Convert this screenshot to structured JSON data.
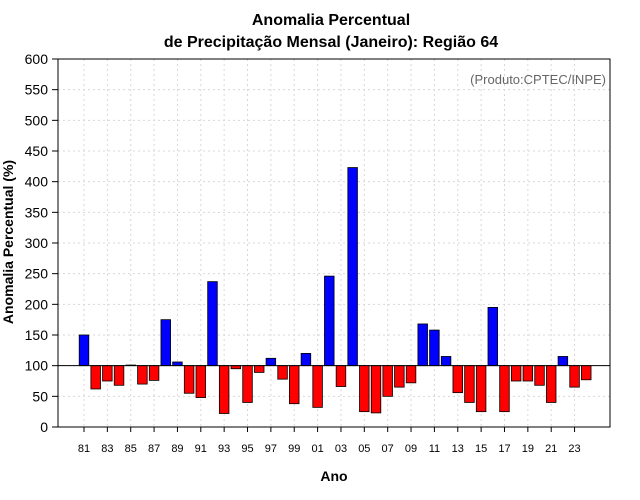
{
  "chart_data": {
    "type": "bar",
    "title": "Anomalia Percentual",
    "subtitle": "de Precipitação Mensal (Janeiro): Região 64",
    "xlabel": "Ano",
    "ylabel": "Anomalia Percentual (%)",
    "note": "(Produto:CPTEC/INPE)",
    "ylim": [
      0,
      600
    ],
    "yticks": [
      0,
      50,
      100,
      150,
      200,
      250,
      300,
      350,
      400,
      450,
      500,
      550,
      600
    ],
    "baseline": 100,
    "grid": true,
    "categories": [
      "81",
      "82",
      "83",
      "84",
      "85",
      "86",
      "87",
      "88",
      "89",
      "90",
      "91",
      "92",
      "93",
      "94",
      "95",
      "96",
      "97",
      "98",
      "99",
      "00",
      "01",
      "02",
      "03",
      "04",
      "05",
      "06",
      "07",
      "08",
      "09",
      "10",
      "11",
      "12",
      "13",
      "14",
      "15",
      "16",
      "17",
      "18",
      "19",
      "20",
      "21",
      "22",
      "23",
      "24"
    ],
    "xtick_labels": [
      "81",
      "83",
      "85",
      "87",
      "89",
      "91",
      "93",
      "95",
      "97",
      "99",
      "01",
      "03",
      "05",
      "07",
      "09",
      "11",
      "13",
      "15",
      "17",
      "19",
      "21",
      "23"
    ],
    "values": [
      150,
      62,
      75,
      68,
      101,
      70,
      76,
      175,
      106,
      55,
      48,
      237,
      22,
      95,
      40,
      89,
      112,
      78,
      38,
      120,
      32,
      246,
      66,
      423,
      25,
      23,
      50,
      65,
      72,
      168,
      158,
      115,
      56,
      40,
      25,
      195,
      25,
      75,
      75,
      68,
      40,
      115,
      65,
      77
    ],
    "colors": {
      "above": "#0000ff",
      "below": "#ff0000",
      "edge": "#000000"
    }
  }
}
